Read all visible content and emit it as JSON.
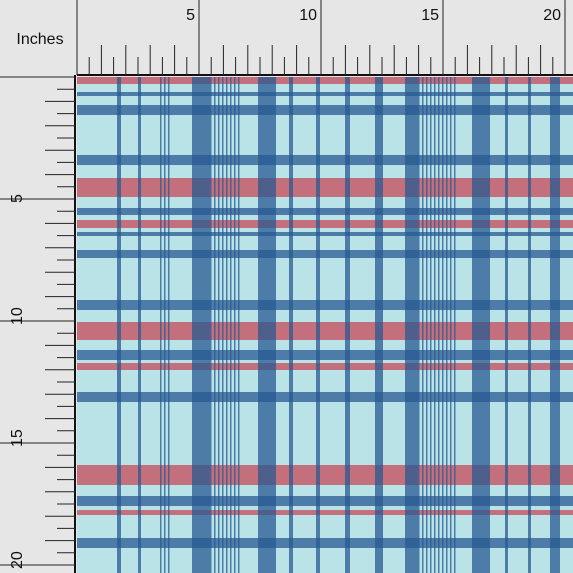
{
  "ruler_unit": "Inches",
  "top_ruler": {
    "labels": [
      "5",
      "10",
      "15",
      "20"
    ]
  },
  "left_ruler": {
    "labels": [
      "5",
      "10",
      "15",
      "20"
    ]
  }
}
